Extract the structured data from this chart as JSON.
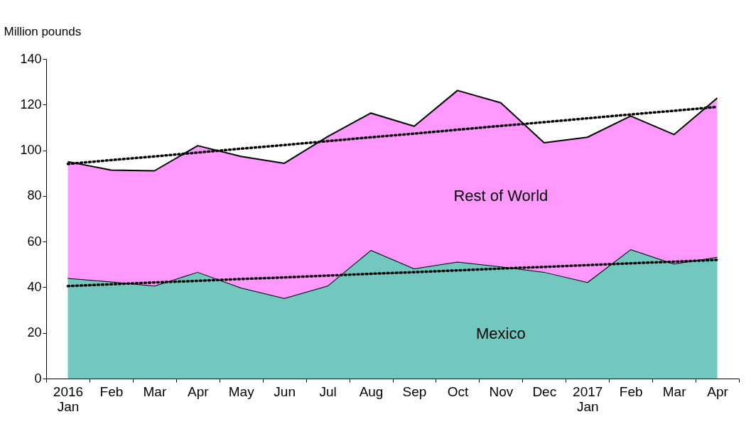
{
  "chart_data": {
    "type": "area",
    "stacked": true,
    "ylabel": "Million pounds",
    "categories": [
      "2016 Jan",
      "Feb",
      "Mar",
      "Apr",
      "May",
      "Jun",
      "Jul",
      "Aug",
      "Sep",
      "Oct",
      "Nov",
      "Dec",
      "2017 Jan",
      "Feb",
      "Mar",
      "Apr"
    ],
    "series": [
      {
        "name": "Mexico",
        "color": "#72c7be",
        "values": [
          44,
          42.5,
          40.7,
          46.7,
          39.8,
          35.2,
          40.7,
          56.3,
          48.2,
          51.2,
          49.1,
          46.7,
          42.2,
          56.6,
          50.3,
          53.3
        ]
      },
      {
        "name": "Rest of World",
        "color": "#ff99ff",
        "values": [
          51,
          48.8,
          50.3,
          55.3,
          57.5,
          59.1,
          65.3,
          60,
          62.3,
          75,
          71.7,
          56.6,
          63.5,
          58.4,
          56.6,
          69.6
        ]
      },
      {
        "type": "line",
        "line_style": "dotted",
        "color": "#000000",
        "values": [
          94,
          95.7,
          97.3,
          99,
          100.7,
          102.3,
          104,
          105.7,
          107.3,
          109,
          110.7,
          112.3,
          114,
          115.7,
          117.3,
          119
        ]
      },
      {
        "type": "line",
        "line_style": "dotted",
        "color": "#000000",
        "values": [
          40.5,
          41.3,
          42.1,
          42.8,
          43.6,
          44.3,
          45.1,
          45.9,
          46.6,
          47.4,
          48.2,
          48.9,
          49.7,
          50.5,
          51.2,
          52
        ]
      }
    ],
    "ylim": [
      0,
      140
    ],
    "yticks": [
      0,
      20,
      40,
      60,
      80,
      100,
      120,
      140
    ],
    "grid": false,
    "legend": false
  }
}
